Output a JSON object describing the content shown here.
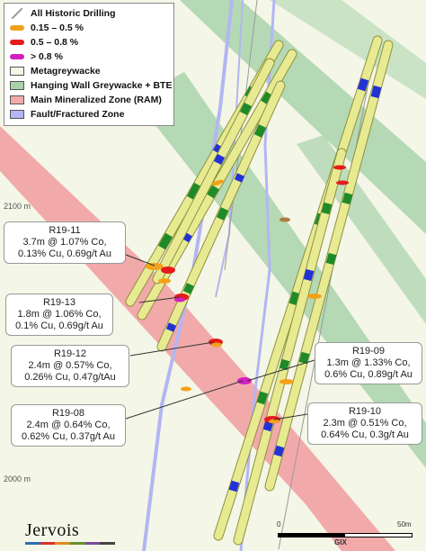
{
  "legend": {
    "items": [
      {
        "label": "All Historic Drilling",
        "kind": "line",
        "color": "#9a9a9a"
      },
      {
        "label": "0.15 – 0.5 %",
        "kind": "bar",
        "color": "#f2a21a"
      },
      {
        "label": "0.5 – 0.8 %",
        "kind": "bar",
        "color": "#e41c1c"
      },
      {
        "label": "> 0.8 %",
        "kind": "bar",
        "color": "#d21fc0"
      },
      {
        "label": "Metagreywacke",
        "kind": "box",
        "color": "#f4f6e7"
      },
      {
        "label": "Hanging Wall Greywacke + BTE",
        "kind": "box",
        "color": "#a8d3aa"
      },
      {
        "label": "Main Mineralized Zone (RAM)",
        "kind": "box",
        "color": "#f2a9aa"
      },
      {
        "label": "Fault/Fractured Zone",
        "kind": "box",
        "color": "#b3b6f2"
      }
    ]
  },
  "colors": {
    "background": "#f4f6e7",
    "hanging_wall": "#a8d3aa",
    "main_zone": "#f2a9aa",
    "fault": "#b3b6f2",
    "drillhole": "#e8ea92",
    "drillhole_edge": "#8e9040",
    "green_segment": "#1f8a2a",
    "blue_segment": "#2232d6",
    "brown_segment": "#b07a3a"
  },
  "elevation_labels": {
    "upper": "2100 m",
    "lower": "2000 m"
  },
  "callouts": [
    {
      "hole": "R19-11",
      "line1": "3.7m @ 1.07% Co,",
      "line2": "0.13% Cu, 0.69g/t Au"
    },
    {
      "hole": "R19-13",
      "line1": "1.8m @ 1.06% Co,",
      "line2": "0.1% Cu, 0.69g/t Au"
    },
    {
      "hole": "R19-12",
      "line1": "2.4m @ 0.57% Co,",
      "line2": "0.26% Cu, 0.47g/tAu"
    },
    {
      "hole": "R19-08",
      "line1": "2.4m @ 0.64% Co,",
      "line2": "0.62% Cu, 0.37g/t Au"
    },
    {
      "hole": "R19-09",
      "line1": "1.3m @ 1.33% Co,",
      "line2": "0.6% Cu, 0.89g/t Au"
    },
    {
      "hole": "R19-10",
      "line1": "2.3m @ 0.51% Co,",
      "line2": "0.64% Cu, 0.3g/t Au"
    }
  ],
  "scale": {
    "start": "0",
    "end": "50m",
    "caption": "GIX"
  },
  "logo": {
    "name": "Jervois",
    "stripe_colors": [
      "#2c6fb3",
      "#d9322b",
      "#e48a1e",
      "#6a8f2e",
      "#7a4c9a",
      "#444444"
    ]
  }
}
